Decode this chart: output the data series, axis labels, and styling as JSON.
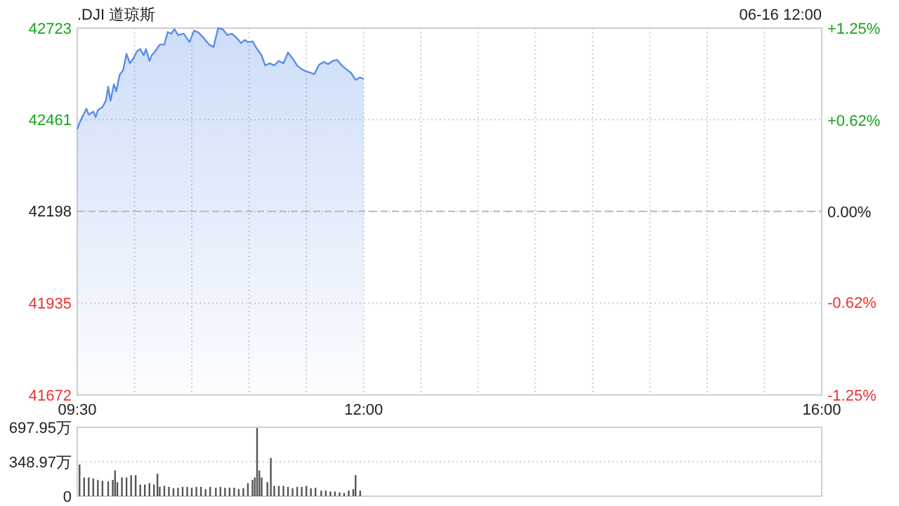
{
  "chart_data": [
    {
      "type": "area",
      "title": ".DJI 道琼斯",
      "annotations": [
        "06-16 12:00"
      ],
      "xlim": [
        9.5,
        16
      ],
      "xticks": [
        {
          "value": 9.5,
          "label": "09:30"
        },
        {
          "value": 10,
          "label": null
        },
        {
          "value": 10.5,
          "label": null
        },
        {
          "value": 11,
          "label": null
        },
        {
          "value": 11.5,
          "label": null
        },
        {
          "value": 12,
          "label": "12:00"
        },
        {
          "value": 12.5,
          "label": null
        },
        {
          "value": 13,
          "label": null
        },
        {
          "value": 13.5,
          "label": null
        },
        {
          "value": 14,
          "label": null
        },
        {
          "value": 14.5,
          "label": null
        },
        {
          "value": 15,
          "label": null
        },
        {
          "value": 15.5,
          "label": null
        },
        {
          "value": 16,
          "label": "16:00"
        }
      ],
      "ylim": [
        41672,
        42723
      ],
      "yticks": [
        41672,
        41935,
        42198,
        42461,
        42723
      ],
      "y2lim": [
        -1.25,
        1.25
      ],
      "y2ticks": [
        {
          "value": -1.25,
          "label": "-1.25%"
        },
        {
          "value": -0.62,
          "label": "-0.62%"
        },
        {
          "value": 0,
          "label": "0.00%"
        },
        {
          "value": 0.62,
          "label": "+0.62%"
        },
        {
          "value": 1.25,
          "label": "+1.25%"
        }
      ],
      "grid": true,
      "ref_lines": [
        {
          "axis": "y",
          "value": 42198,
          "line_style": "dashed",
          "color": "#bbbbbb"
        }
      ],
      "series": [
        {
          "color": "#5a8ee8",
          "x": [
            9.5,
            9.52,
            9.58,
            9.6,
            9.64,
            9.66,
            9.68,
            9.72,
            9.75,
            9.77,
            9.79,
            9.82,
            9.84,
            9.87,
            9.9,
            9.93,
            9.96,
            9.99,
            10.02,
            10.05,
            10.08,
            10.1,
            10.13,
            10.15,
            10.18,
            10.22,
            10.26,
            10.29,
            10.32,
            10.35,
            10.38,
            10.43,
            10.48,
            10.52,
            10.56,
            10.6,
            10.65,
            10.69,
            10.73,
            10.77,
            10.81,
            10.85,
            10.89,
            10.93,
            10.96,
            10.99,
            11.03,
            11.07,
            11.11,
            11.14,
            11.18,
            11.22,
            11.26,
            11.3,
            11.34,
            11.38,
            11.42,
            11.46,
            11.5,
            11.54,
            11.57,
            11.61,
            11.65,
            11.69,
            11.73,
            11.77,
            11.81,
            11.85,
            11.89,
            11.93,
            11.97,
            12.0
          ],
          "values": [
            42434,
            42452,
            42492,
            42475,
            42484,
            42468,
            42488,
            42497,
            42515,
            42555,
            42515,
            42562,
            42542,
            42589,
            42602,
            42649,
            42622,
            42636,
            42656,
            42663,
            42645,
            42663,
            42629,
            42645,
            42656,
            42676,
            42676,
            42712,
            42707,
            42720,
            42703,
            42707,
            42683,
            42716,
            42710,
            42696,
            42676,
            42669,
            42723,
            42720,
            42703,
            42707,
            42696,
            42680,
            42689,
            42683,
            42685,
            42663,
            42645,
            42616,
            42622,
            42616,
            42629,
            42622,
            42653,
            42636,
            42616,
            42605,
            42599,
            42595,
            42591,
            42618,
            42626,
            42620,
            42629,
            42632,
            42616,
            42605,
            42595,
            42575,
            42582,
            42578
          ]
        }
      ]
    },
    {
      "type": "bar",
      "xlim": [
        9.5,
        16
      ],
      "tick_labels": "y",
      "grid": "y",
      "ylim": [
        0,
        697.95
      ],
      "yticks": [
        0,
        {
          "value": 348.97,
          "label": "348.97万"
        },
        {
          "value": 697.95,
          "label": "697.95万"
        }
      ],
      "series": [
        {
          "color": "#555555",
          "x": [
            9.52,
            9.56,
            9.6,
            9.64,
            9.68,
            9.72,
            9.77,
            9.81,
            9.83,
            9.85,
            9.89,
            9.93,
            9.97,
            10.01,
            10.05,
            10.09,
            10.13,
            10.17,
            10.2,
            10.22,
            10.26,
            10.3,
            10.34,
            10.38,
            10.42,
            10.46,
            10.5,
            10.54,
            10.58,
            10.62,
            10.66,
            10.71,
            10.75,
            10.79,
            10.83,
            10.87,
            10.91,
            10.95,
            10.99,
            11.03,
            11.05,
            11.07,
            11.09,
            11.11,
            11.16,
            11.19,
            11.22,
            11.26,
            11.3,
            11.34,
            11.38,
            11.42,
            11.46,
            11.5,
            11.54,
            11.58,
            11.63,
            11.67,
            11.71,
            11.75,
            11.79,
            11.83,
            11.87,
            11.91,
            11.93,
            11.97
          ],
          "values": [
            321,
            189,
            189,
            179,
            165,
            156,
            151,
            165,
            260,
            142,
            189,
            189,
            212,
            212,
            118,
            118,
            132,
            118,
            227,
            94,
            104,
            94,
            80,
            85,
            94,
            94,
            85,
            94,
            94,
            71,
            94,
            85,
            94,
            85,
            85,
            85,
            71,
            80,
            132,
            165,
            189,
            690,
            260,
            189,
            142,
            387,
            104,
            104,
            104,
            94,
            80,
            94,
            94,
            104,
            80,
            85,
            57,
            57,
            47,
            47,
            38,
            33,
            57,
            71,
            212,
            57
          ]
        }
      ]
    }
  ]
}
